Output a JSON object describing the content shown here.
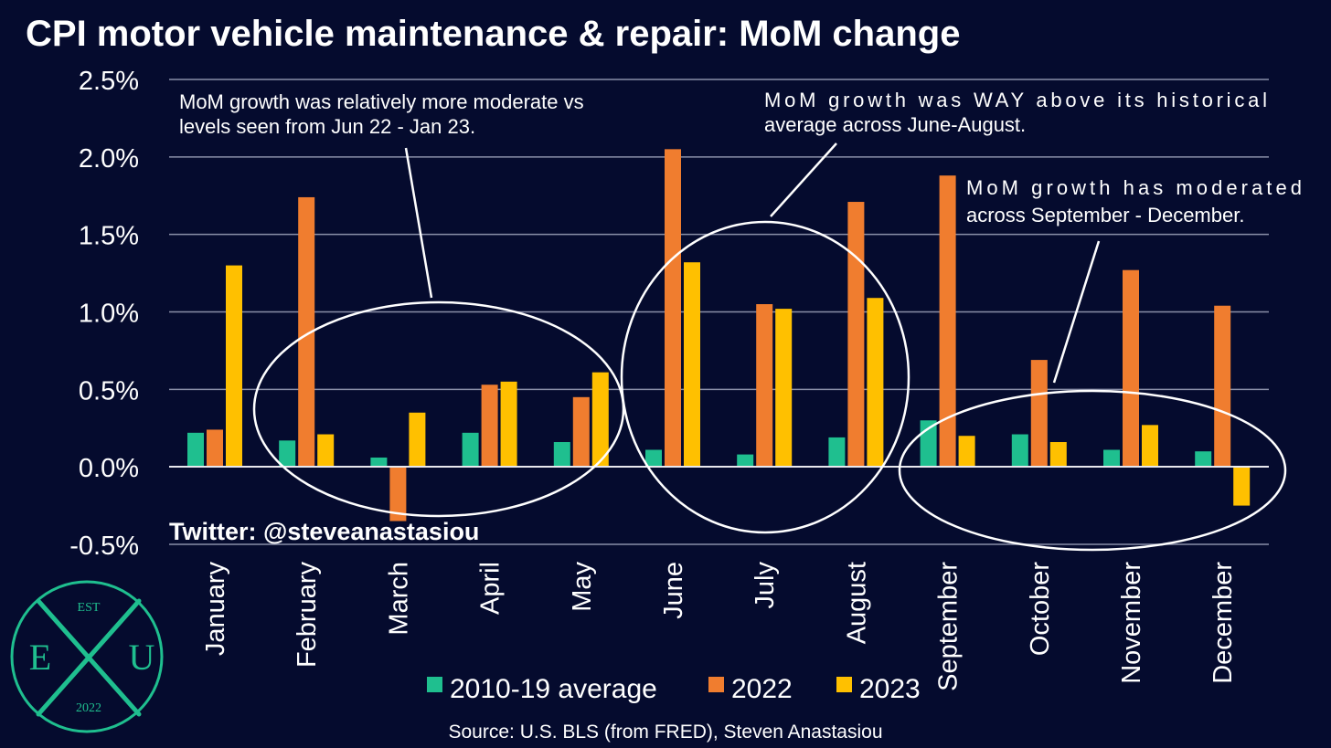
{
  "chart_data": {
    "type": "bar",
    "title": "CPI motor vehicle maintenance & repair: MoM change",
    "xlabel": "",
    "ylabel": "",
    "categories": [
      "January",
      "February",
      "March",
      "April",
      "May",
      "June",
      "July",
      "August",
      "September",
      "October",
      "November",
      "December"
    ],
    "series": [
      {
        "name": "2010-19 average",
        "color": "#1fbf8f",
        "values": [
          0.22,
          0.17,
          0.06,
          0.22,
          0.16,
          0.11,
          0.08,
          0.19,
          0.3,
          0.21,
          0.11,
          0.1
        ]
      },
      {
        "name": "2022",
        "color": "#f07d2f",
        "values": [
          0.24,
          1.74,
          -0.35,
          0.53,
          0.45,
          2.05,
          1.05,
          1.71,
          1.88,
          0.69,
          1.27,
          1.04
        ]
      },
      {
        "name": "2023",
        "color": "#ffc000",
        "values": [
          1.3,
          0.21,
          0.35,
          0.55,
          0.61,
          1.32,
          1.02,
          1.09,
          0.2,
          0.16,
          0.27,
          -0.25
        ]
      }
    ],
    "ylim": [
      -0.5,
      2.5
    ],
    "yticks": [
      "2.5%",
      "2.0%",
      "1.5%",
      "1.0%",
      "0.5%",
      "0.0%",
      "-0.5%"
    ],
    "ytick_values": [
      2.5,
      2.0,
      1.5,
      1.0,
      0.5,
      0.0,
      -0.5
    ],
    "grid": true,
    "legend_position": "bottom",
    "annotations": [
      {
        "id": "a1",
        "lines": [
          "MoM growth was relatively more moderate vs",
          "levels seen from Jun 22 - Jan 23."
        ]
      },
      {
        "id": "a2",
        "lines": [
          "MoM  growth  was  WAY  above  its  historical",
          "average across June-August."
        ]
      },
      {
        "id": "a3",
        "lines": [
          "MoM   growth   has   moderated",
          "across September - December."
        ]
      }
    ],
    "twitter": "Twitter: @steveanastasiou",
    "source": "Source: U.S. BLS (from FRED), Steven Anastasiou"
  },
  "logo": {
    "top": "EST",
    "left": "E",
    "right": "U",
    "bottom": "2022",
    "color": "#1fbf8f"
  }
}
